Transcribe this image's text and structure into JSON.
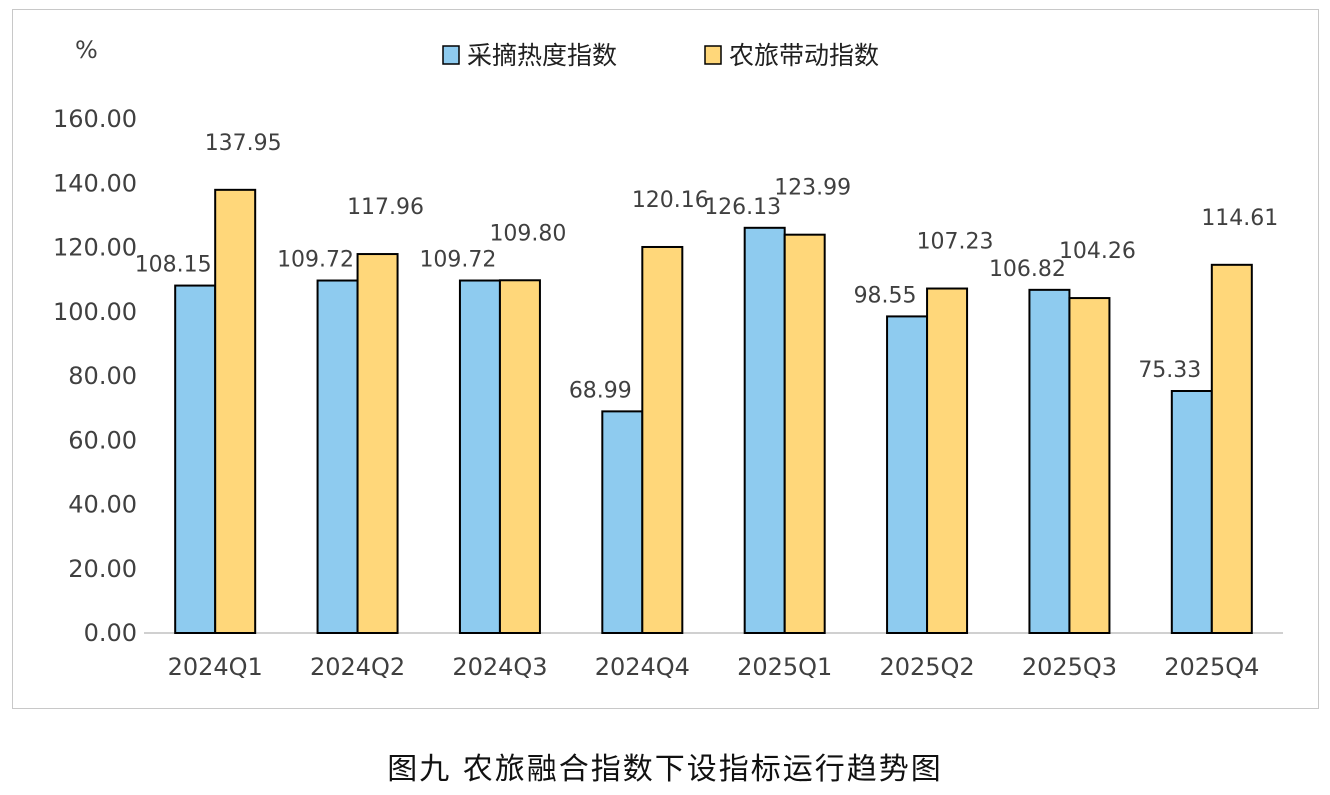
{
  "caption": "图九  农旅融合指数下设指标运行趋势图",
  "chart_data": {
    "type": "bar",
    "y_unit": "%",
    "categories": [
      "2024Q1",
      "2024Q2",
      "2024Q3",
      "2024Q4",
      "2025Q1",
      "2025Q2",
      "2025Q3",
      "2025Q4"
    ],
    "series": [
      {
        "name": "采摘热度指数",
        "color": "#8ecbef",
        "values": [
          108.15,
          109.72,
          109.72,
          68.99,
          126.13,
          98.55,
          106.82,
          75.33
        ]
      },
      {
        "name": "农旅带动指数",
        "color": "#ffd77a",
        "values": [
          137.95,
          117.96,
          109.8,
          120.16,
          123.99,
          107.23,
          104.26,
          114.61
        ]
      }
    ],
    "ylim": [
      0,
      160
    ],
    "yticks": [
      "0.00",
      "20.00",
      "40.00",
      "60.00",
      "80.00",
      "100.00",
      "120.00",
      "140.00",
      "160.00"
    ],
    "legend_position": "top-center",
    "grid": false
  }
}
